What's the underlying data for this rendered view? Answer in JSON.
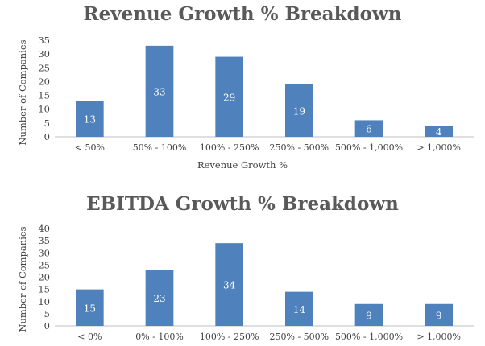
{
  "chart_data": [
    {
      "type": "bar",
      "title": "Revenue Growth % Breakdown",
      "xlabel": "Revenue Growth %",
      "ylabel": "Number of Companies",
      "categories": [
        "< 50%",
        "50% - 100%",
        "100% - 250%",
        "250% - 500%",
        "500% - 1,000%",
        "> 1,000%"
      ],
      "values": [
        13,
        33,
        29,
        19,
        6,
        4
      ],
      "ylim": [
        0,
        35
      ],
      "yticks": [
        0,
        5,
        10,
        15,
        20,
        25,
        30,
        35
      ],
      "grid": false,
      "bar_color": "#4F81BD",
      "label_color": "#FFFFFF"
    },
    {
      "type": "bar",
      "title": "EBITDA Growth % Breakdown",
      "xlabel": "",
      "ylabel": "Number of Companies",
      "categories": [
        "< 0%",
        "0% - 100%",
        "100% - 250%",
        "250% - 500%",
        "500% - 1,000%",
        "> 1,000%"
      ],
      "values": [
        15,
        23,
        34,
        14,
        9,
        9
      ],
      "ylim": [
        0,
        40
      ],
      "yticks": [
        0,
        5,
        10,
        15,
        20,
        25,
        30,
        35,
        40
      ],
      "grid": false,
      "bar_color": "#4F81BD",
      "label_color": "#FFFFFF"
    }
  ]
}
